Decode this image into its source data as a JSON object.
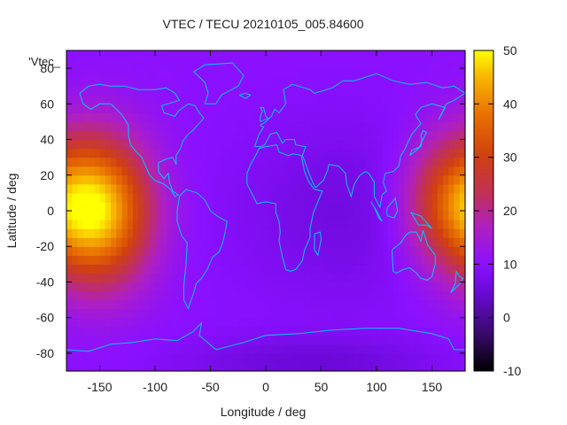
{
  "chart_data": {
    "type": "heatmap",
    "title": "VTEC / TECU 20210105_005.84600",
    "xlabel": "Longitude / deg",
    "ylabel": "Latitude / deg",
    "key_label": "'Vtec_",
    "xlim": [
      -180,
      180
    ],
    "ylim": [
      -90,
      90
    ],
    "x_ticks": [
      -150,
      -100,
      -50,
      0,
      50,
      100,
      150
    ],
    "y_ticks": [
      -80,
      -60,
      -40,
      -20,
      0,
      20,
      40,
      60,
      80
    ],
    "colorbar": {
      "range": [
        -10,
        50
      ],
      "ticks": [
        -10,
        0,
        10,
        20,
        30,
        40,
        50
      ]
    },
    "colors": {
      "coastline": "#00c8ff"
    },
    "field": {
      "background": 10,
      "peaks": [
        {
          "lon": -150,
          "lat": 0,
          "value": 45,
          "lon_spread": 32,
          "lat_spread": 28
        },
        {
          "lon": 165,
          "lat": 5,
          "value": 28,
          "lon_spread": 30,
          "lat_spread": 25
        }
      ],
      "low_regions": [
        {
          "lon": 75,
          "lat": 0,
          "value": 6,
          "lon_spread": 70,
          "lat_spread": 35
        },
        {
          "lon": 40,
          "lat": -85,
          "value": 5,
          "lon_spread": 80,
          "lat_spread": 10
        }
      ]
    }
  }
}
